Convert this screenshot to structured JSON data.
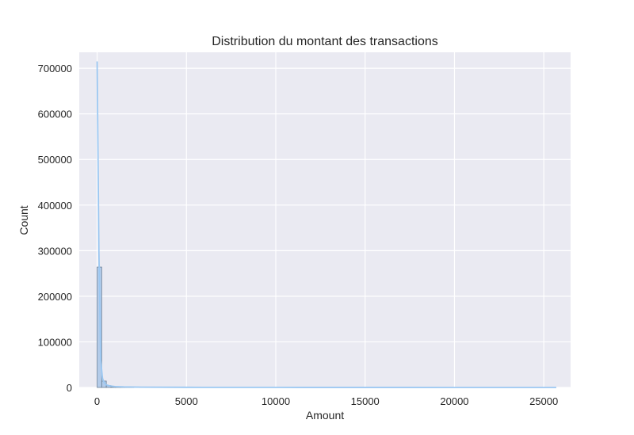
{
  "chart_data": {
    "type": "bar",
    "title": "Distribution du montant des transactions",
    "xlabel": "Amount",
    "ylabel": "Count",
    "xlim": [
      -1000,
      26500
    ],
    "ylim": [
      0,
      735000
    ],
    "x_ticks": [
      0,
      5000,
      10000,
      15000,
      20000,
      25000
    ],
    "y_ticks": [
      0,
      100000,
      200000,
      300000,
      400000,
      500000,
      600000,
      700000
    ],
    "grid": true,
    "bins": [
      {
        "x0": 0,
        "x1": 257,
        "count": 264000
      },
      {
        "x0": 257,
        "x1": 514,
        "count": 14000
      },
      {
        "x0": 514,
        "x1": 771,
        "count": 4000
      },
      {
        "x0": 771,
        "x1": 1028,
        "count": 1500
      },
      {
        "x0": 1028,
        "x1": 1285,
        "count": 700
      },
      {
        "x0": 1285,
        "x1": 1542,
        "count": 400
      },
      {
        "x0": 1542,
        "x1": 1799,
        "count": 250
      },
      {
        "x0": 1799,
        "x1": 2056,
        "count": 150
      }
    ],
    "kde": {
      "x": [
        0,
        100,
        200,
        300,
        400,
        500,
        700,
        1000,
        1500,
        2500,
        5000,
        10000,
        15000,
        20000,
        25700
      ],
      "y": [
        715000,
        300000,
        60000,
        20000,
        10000,
        6000,
        3500,
        2000,
        1200,
        600,
        300,
        150,
        100,
        60,
        40
      ]
    },
    "colors": {
      "bar_fill": "#a9c6e8",
      "bar_edge": "#6a7f96",
      "kde_line": "#9cc8f2",
      "plot_bg": "#eaeaf2",
      "grid": "#ffffff"
    }
  }
}
